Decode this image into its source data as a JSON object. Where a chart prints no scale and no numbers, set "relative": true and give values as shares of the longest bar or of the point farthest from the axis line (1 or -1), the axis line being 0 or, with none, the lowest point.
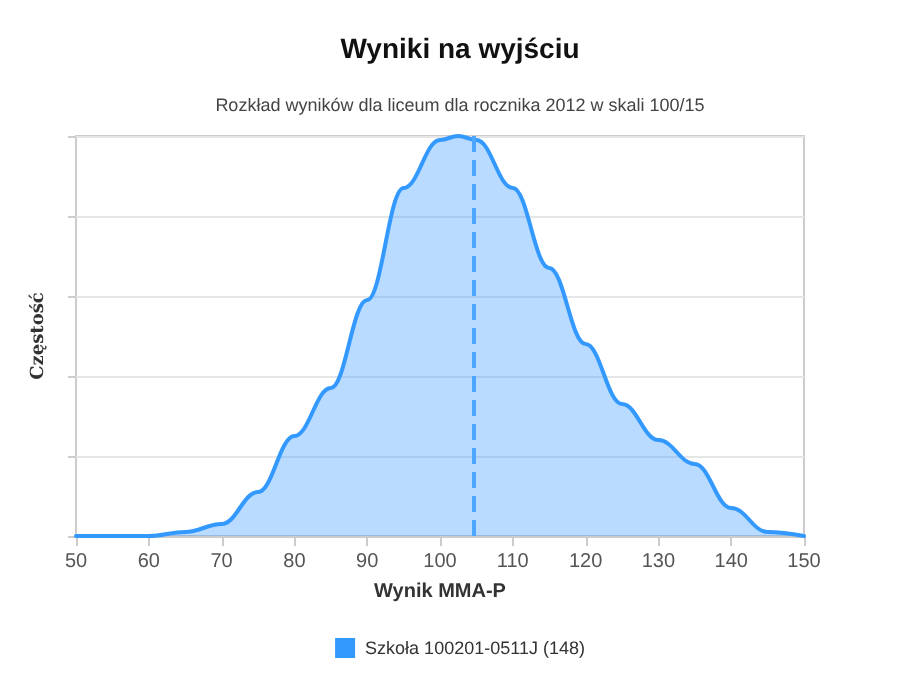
{
  "chart_data": {
    "type": "area",
    "title": "Wyniki na wyjściu",
    "subtitle": "Rozkład wyników dla liceum dla rocznika 2012 w skali 100/15",
    "xlabel": "Wynik MMA-P",
    "ylabel": "Częstość",
    "relative": true,
    "xlim": [
      50,
      150
    ],
    "xticks": [
      50,
      60,
      70,
      80,
      90,
      100,
      110,
      120,
      130,
      140,
      150
    ],
    "grid": "y",
    "legend": "bottom",
    "marker": "none",
    "line_style": "solid",
    "x": [
      50,
      55,
      60,
      65,
      70,
      75,
      80,
      85,
      90,
      95,
      100,
      102.5,
      105,
      110,
      115,
      120,
      125,
      130,
      135,
      140,
      145,
      150
    ],
    "series": [
      {
        "name": "Szkoła 100201-0511J (148)",
        "color": "#3399ff",
        "values": [
          0,
          0,
          0,
          0.01,
          0.03,
          0.11,
          0.25,
          0.37,
          0.59,
          0.87,
          0.99,
          1,
          0.99,
          0.87,
          0.67,
          0.48,
          0.33,
          0.24,
          0.18,
          0.07,
          0.01,
          0
        ]
      }
    ],
    "ref_lines": [
      {
        "axis": "x",
        "value": 104.5,
        "color": "#4da6ff",
        "line_style": "dashed"
      }
    ]
  }
}
